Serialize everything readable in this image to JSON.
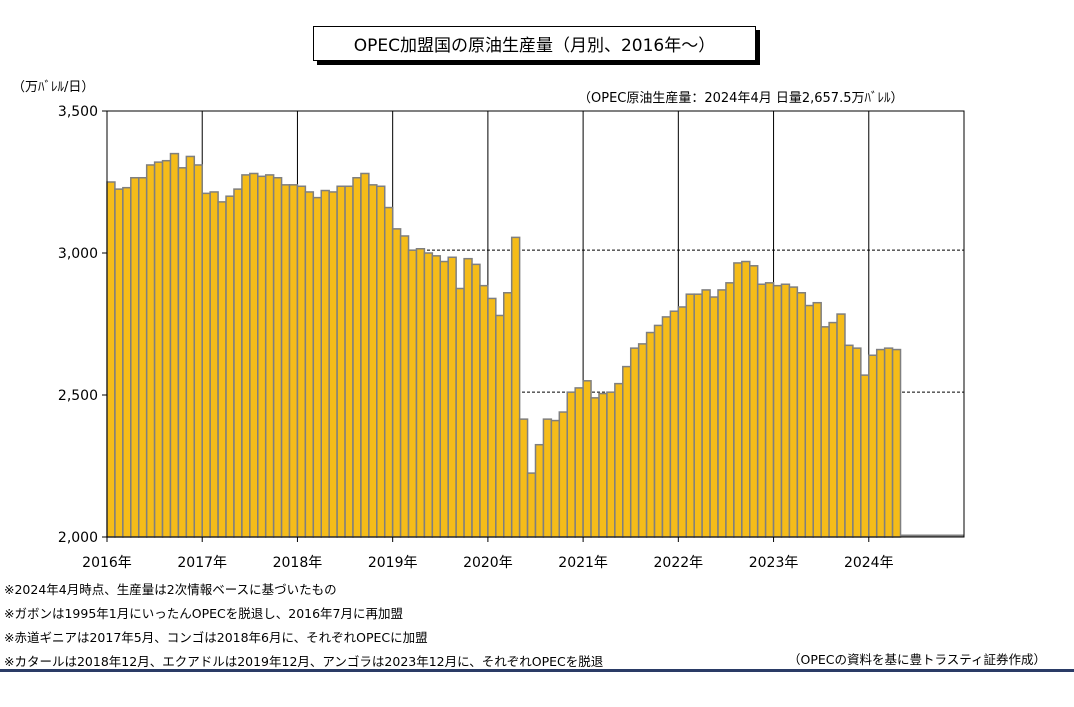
{
  "title": "OPEC加盟国の原油生産量（月別、2016年～）",
  "unit_label": "（万ﾊﾞﾚﾙ/日）",
  "annotation": "（OPEC原油生産量：2024年4月  日量2,657.5万ﾊﾞﾚﾙ）",
  "footnotes": [
    "※2024年4月時点、生産量は2次情報ベースに基づいたもの",
    "※ガボンは1995年1月にいったんOPECを脱退し、2016年7月に再加盟",
    "※赤道ギニアは2017年5月、コンゴは2018年6月に、それぞれOPECに加盟",
    "※カタールは2018年12月、エクアドルは2019年12月、アンゴラは2023年12月に、それぞれOPECを脱退"
  ],
  "source": "（OPECの資料を基に豊トラスティ証券作成）",
  "colors": {
    "bar_fill": "#F5BC19",
    "bar_stroke": "#7F7F7F",
    "bottom_line": "#2A3B66"
  },
  "chart_data": {
    "type": "bar",
    "title": "OPEC加盟国の原油生産量（月別、2016年～）",
    "ylabel": "（万ﾊﾞﾚﾙ/日）",
    "ylim": [
      2000,
      3500
    ],
    "yticks": [
      "3,500",
      "3,000",
      "2,500",
      "2,000"
    ],
    "ytick_values": [
      3500,
      3000,
      2500,
      2000
    ],
    "x_labels": [
      "2016年",
      "2017年",
      "2018年",
      "2019年",
      "2020年",
      "2021年",
      "2022年",
      "2023年",
      "2024年"
    ],
    "total_slots": 108,
    "reference_lines": [
      3010,
      2510
    ],
    "start": "2016-01",
    "values": [
      3250,
      3225,
      3230,
      3265,
      3265,
      3310,
      3320,
      3325,
      3350,
      3300,
      3340,
      3310,
      3210,
      3215,
      3180,
      3200,
      3225,
      3275,
      3280,
      3270,
      3275,
      3265,
      3240,
      3240,
      3235,
      3215,
      3195,
      3220,
      3215,
      3235,
      3235,
      3265,
      3280,
      3240,
      3235,
      3160,
      3085,
      3060,
      3010,
      3015,
      3000,
      2990,
      2970,
      2985,
      2875,
      2980,
      2960,
      2885,
      2840,
      2780,
      2860,
      3055,
      2415,
      2225,
      2325,
      2415,
      2410,
      2440,
      2510,
      2525,
      2550,
      2490,
      2505,
      2510,
      2540,
      2600,
      2665,
      2680,
      2720,
      2745,
      2775,
      2795,
      2810,
      2855,
      2855,
      2870,
      2845,
      2870,
      2895,
      2965,
      2970,
      2955,
      2890,
      2895,
      2885,
      2890,
      2880,
      2860,
      2815,
      2825,
      2740,
      2755,
      2785,
      2675,
      2665,
      2570,
      2640,
      2660,
      2665,
      2660
    ]
  }
}
